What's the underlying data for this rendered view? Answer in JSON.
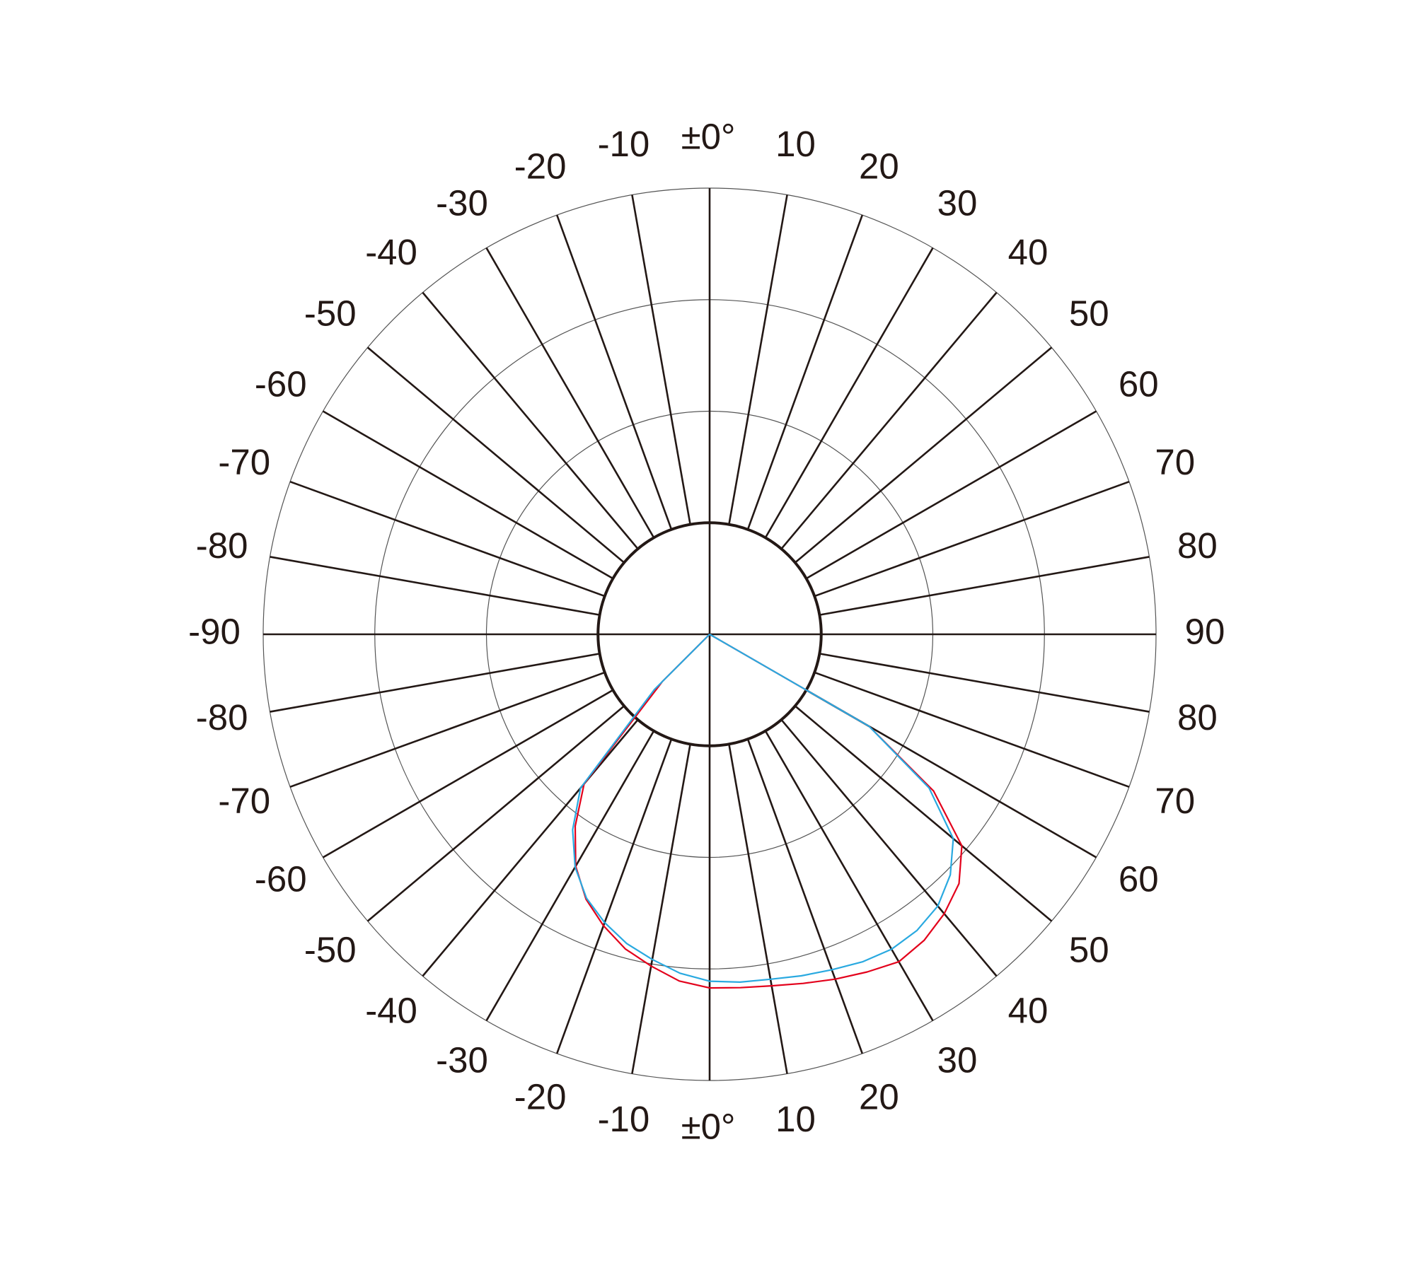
{
  "chart_data": {
    "type": "polar",
    "xlim": [
      -180,
      180
    ],
    "xticks": [
      {
        "value": 0,
        "label": "±0°"
      },
      10,
      20,
      30,
      40,
      50,
      60,
      70,
      80,
      90,
      {
        "value": 100,
        "label": "80"
      },
      {
        "value": 110,
        "label": "70"
      },
      {
        "value": 120,
        "label": "60"
      },
      {
        "value": 130,
        "label": "50"
      },
      {
        "value": 140,
        "label": "40"
      },
      {
        "value": 150,
        "label": "30"
      },
      {
        "value": 160,
        "label": "20"
      },
      {
        "value": 170,
        "label": "10"
      },
      {
        "value": 180,
        "label": "±0°"
      },
      {
        "value": -170,
        "label": "-10"
      },
      {
        "value": -160,
        "label": "-20"
      },
      {
        "value": -150,
        "label": "-30"
      },
      {
        "value": -140,
        "label": "-40"
      },
      {
        "value": -130,
        "label": "-50"
      },
      {
        "value": -120,
        "label": "-60"
      },
      {
        "value": -110,
        "label": "-70"
      },
      {
        "value": -100,
        "label": "-80"
      },
      -90,
      -80,
      -70,
      -60,
      -50,
      -40,
      -30,
      -20,
      -10
    ],
    "rlim": [
      0,
      400
    ],
    "rticks": [
      100,
      200,
      300,
      400
    ],
    "x": [
      -50,
      -45,
      -40,
      -35,
      -30,
      -25,
      -20,
      -15,
      -10,
      -5,
      0,
      5,
      10,
      15,
      20,
      25,
      30,
      35,
      40,
      45,
      50,
      55,
      60,
      65
    ],
    "series": [
      {
        "color": "#e3001b",
        "values": [
          0,
          60,
          175,
          210,
          240,
          262,
          278,
          292,
          302,
          312,
          317,
          318,
          320,
          324,
          329,
          334,
          339,
          335,
          327,
          316,
          295,
          245,
          165,
          0
        ]
      },
      {
        "color": "#29a9e0",
        "values": [
          0,
          70,
          180,
          214,
          241,
          261,
          275,
          287,
          296,
          305,
          311,
          313,
          314,
          317,
          320,
          324,
          326,
          324,
          318,
          305,
          285,
          240,
          165,
          0
        ]
      }
    ]
  }
}
